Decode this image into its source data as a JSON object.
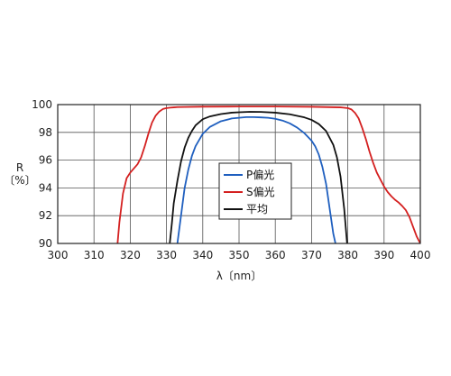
{
  "chart_data": {
    "type": "line",
    "xlabel": "λ〔nm〕",
    "ylabel": "R\n〔%〕",
    "xlim": [
      300,
      400
    ],
    "ylim": [
      90,
      100
    ],
    "xticks": [
      "300",
      "310",
      "320",
      "330",
      "340",
      "350",
      "360",
      "370",
      "380",
      "390",
      "400"
    ],
    "yticks": [
      "90",
      "92",
      "94",
      "96",
      "98",
      "100"
    ],
    "grid": true,
    "legend": "center",
    "series": [
      {
        "name": "P偏光",
        "color": "#1f5fbf",
        "x": [
          333,
          333.5,
          334,
          335,
          336,
          337,
          338,
          340,
          342,
          345,
          348,
          350,
          352,
          354,
          356,
          358,
          360,
          362,
          364,
          366,
          368,
          370,
          371,
          372,
          373,
          374,
          375,
          376,
          376.6
        ],
        "y": [
          90,
          91,
          92,
          94,
          95.3,
          96.3,
          97,
          97.9,
          98.4,
          98.8,
          99.0,
          99.05,
          99.1,
          99.1,
          99.08,
          99.05,
          98.98,
          98.85,
          98.65,
          98.35,
          97.95,
          97.4,
          97.0,
          96.4,
          95.5,
          94.3,
          92.5,
          90.7,
          90
        ]
      },
      {
        "name": "S偏光",
        "color": "#d42020",
        "x": [
          316.5,
          317,
          318,
          319,
          320,
          321,
          322,
          323,
          324,
          325,
          326,
          327,
          328,
          329,
          330,
          331,
          332,
          333,
          335,
          340,
          350,
          360,
          370,
          378,
          380,
          381,
          382,
          383,
          384,
          385,
          386,
          387,
          388,
          389,
          390,
          391,
          392,
          393,
          394,
          395,
          396,
          397,
          398,
          399,
          400
        ],
        "y": [
          90,
          91.5,
          93.6,
          94.7,
          95.1,
          95.4,
          95.7,
          96.2,
          97.0,
          97.9,
          98.7,
          99.2,
          99.5,
          99.68,
          99.75,
          99.78,
          99.8,
          99.82,
          99.83,
          99.85,
          99.86,
          99.86,
          99.84,
          99.8,
          99.75,
          99.65,
          99.4,
          99.0,
          98.3,
          97.5,
          96.6,
          95.8,
          95.1,
          94.6,
          94.1,
          93.7,
          93.4,
          93.15,
          92.95,
          92.7,
          92.4,
          91.9,
          91.2,
          90.5,
          90
        ]
      },
      {
        "name": "平均",
        "color": "#111111",
        "x": [
          330.9,
          331.5,
          332,
          333,
          334,
          335,
          336,
          337,
          338,
          340,
          342,
          345,
          348,
          350,
          353,
          356,
          360,
          364,
          368,
          370,
          372,
          374,
          376,
          377,
          378,
          379,
          379.8
        ],
        "y": [
          90,
          91.5,
          92.9,
          94.5,
          95.9,
          96.9,
          97.6,
          98.1,
          98.5,
          98.95,
          99.15,
          99.32,
          99.42,
          99.45,
          99.48,
          99.47,
          99.42,
          99.3,
          99.08,
          98.9,
          98.6,
          98.1,
          97.1,
          96.2,
          94.8,
          92.5,
          90
        ]
      }
    ]
  }
}
